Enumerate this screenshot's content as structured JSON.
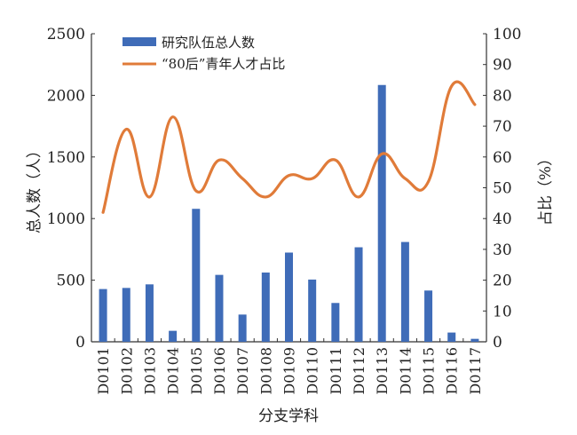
{
  "chart_data": {
    "type": "bar+line",
    "categories": [
      "D0101",
      "D0102",
      "D0103",
      "D0104",
      "D0105",
      "D0106",
      "D0107",
      "D0108",
      "D0109",
      "D0110",
      "D0111",
      "D0112",
      "D0113",
      "D0114",
      "D0115",
      "D0116",
      "D0117"
    ],
    "series": [
      {
        "name": "研究队伍总人数",
        "type": "bar",
        "axis": "left",
        "color": "#3f6cb8",
        "values": [
          428,
          437,
          466,
          89,
          1079,
          543,
          221,
          562,
          724,
          505,
          315,
          767,
          2084,
          810,
          416,
          75,
          24
        ]
      },
      {
        "name": "“80后”青年人才占比",
        "type": "line",
        "axis": "right",
        "color": "#e07b39",
        "values": [
          42,
          69,
          47,
          73,
          49,
          59,
          53,
          47,
          54,
          53,
          59,
          47,
          61,
          53,
          52,
          83,
          77
        ]
      }
    ],
    "xlabel": "分支学科",
    "ylabel": "总人数（人）",
    "y2label": "占比（%）",
    "ylim": [
      0,
      2500
    ],
    "y2lim": [
      0,
      100
    ],
    "yticks": [
      0,
      500,
      1000,
      1500,
      2000,
      2500
    ],
    "y2ticks": [
      0,
      10,
      20,
      30,
      40,
      50,
      60,
      70,
      80,
      90,
      100
    ],
    "grid": false,
    "legend": "top-left"
  }
}
